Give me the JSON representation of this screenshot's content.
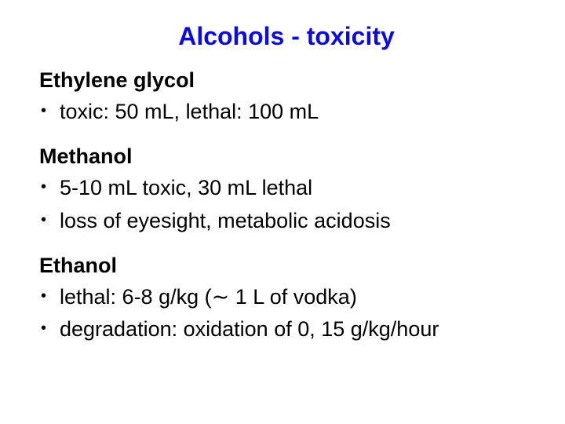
{
  "title": {
    "text": "Alcohols - toxicity",
    "color": "#0b0be0",
    "fontsize": 32,
    "fontweight": "bold"
  },
  "body": {
    "text_color": "#000000",
    "fontsize": 27,
    "bullet_marker": "•",
    "sections": [
      {
        "heading": "Ethylene glycol",
        "bullets": [
          "toxic: 50 mL, lethal: 100 mL"
        ]
      },
      {
        "heading": "Methanol",
        "bullets": [
          "5-10 mL toxic, 30 mL lethal",
          "loss of eyesight, metabolic acidosis"
        ]
      },
      {
        "heading": "Ethanol",
        "bullets": [
          "lethal: 6-8 g/kg (∼ 1 L of vodka)",
          "degradation: oxidation of 0, 15 g/kg/hour"
        ]
      }
    ]
  },
  "background_color": "#ffffff",
  "font_family": "Comic Sans MS"
}
